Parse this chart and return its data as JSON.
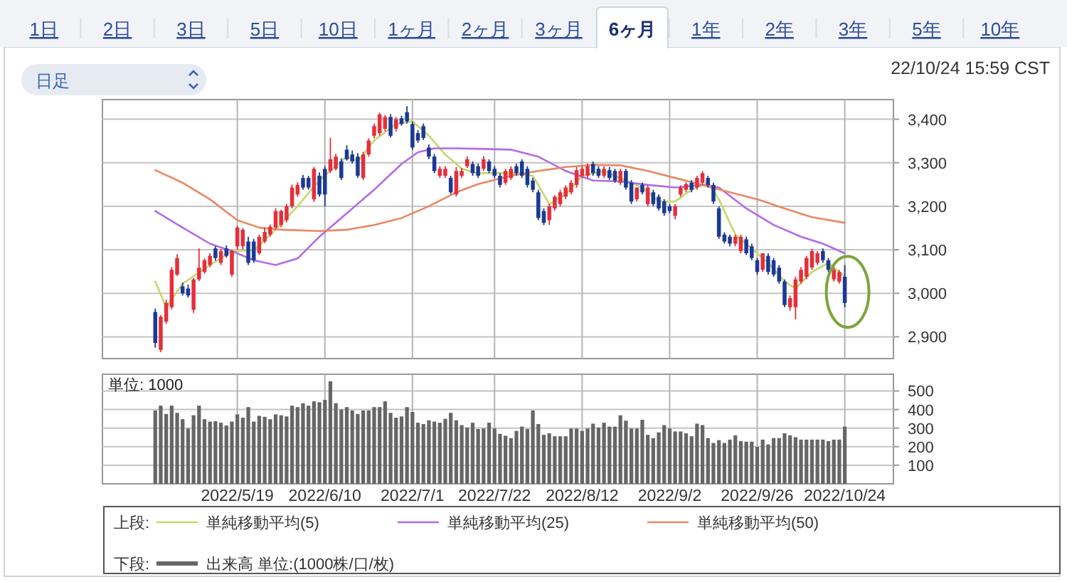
{
  "chart_data": [
    {
      "type": "other",
      "categories": [
        "1日",
        "2日",
        "3日",
        "5日",
        "10日",
        "1ヶ月",
        "2ヶ月",
        "3ヶ月",
        "6ヶ月",
        "1年",
        "2年",
        "3年",
        "5年",
        "10年"
      ],
      "annotations": [
        "日足"
      ]
    },
    {
      "type": "candlestick",
      "categories": [
        null,
        null,
        null,
        null,
        null,
        null,
        null,
        null,
        null,
        null,
        null,
        null,
        null,
        null,
        null,
        "2022/5/19",
        null,
        null,
        null,
        null,
        null,
        null,
        null,
        null,
        null,
        null,
        null,
        null,
        null,
        null,
        null,
        "2022/6/10",
        null,
        null,
        null,
        null,
        null,
        null,
        null,
        null,
        null,
        null,
        null,
        null,
        null,
        null,
        null,
        "2022/7/1",
        null,
        null,
        null,
        null,
        null,
        null,
        null,
        null,
        null,
        null,
        null,
        null,
        null,
        null,
        "2022/7/22",
        null,
        null,
        null,
        null,
        null,
        null,
        null,
        null,
        null,
        null,
        null,
        null,
        null,
        null,
        null,
        "2022/8/12",
        null,
        null,
        null,
        null,
        null,
        null,
        null,
        null,
        null,
        null,
        null,
        null,
        null,
        null,
        null,
        "2022/9/2",
        null,
        null,
        null,
        null,
        null,
        null,
        null,
        null,
        null,
        null,
        null,
        null,
        null,
        null,
        null,
        "2022/9/26",
        null,
        null,
        null,
        null,
        null,
        null,
        null,
        null,
        null,
        null,
        null,
        null,
        null,
        null,
        null,
        "2022/10/24"
      ],
      "ohlc": [
        [
          2957,
          2965,
          2875,
          2886
        ],
        [
          2870,
          2950,
          2865,
          2946
        ],
        [
          2935,
          2985,
          2930,
          2978
        ],
        [
          2968,
          3060,
          2963,
          3054
        ],
        [
          3043,
          3090,
          3040,
          3081
        ],
        [
          3016,
          3025,
          2995,
          3000
        ],
        [
          3011,
          3020,
          2990,
          2995
        ],
        [
          2962,
          3035,
          2955,
          3032
        ],
        [
          3032,
          3103,
          3028,
          3059
        ],
        [
          3049,
          3080,
          3045,
          3076
        ],
        [
          3065,
          3092,
          3060,
          3086
        ],
        [
          3103,
          3108,
          3075,
          3081
        ],
        [
          3070,
          3102,
          3065,
          3097
        ],
        [
          3103,
          3110,
          3082,
          3086
        ],
        [
          3043,
          3100,
          3038,
          3097
        ],
        [
          3108,
          3155,
          3100,
          3151
        ],
        [
          3108,
          3150,
          3100,
          3146
        ],
        [
          3119,
          3130,
          3065,
          3070
        ],
        [
          3119,
          3125,
          3070,
          3076
        ],
        [
          3092,
          3135,
          3088,
          3130
        ],
        [
          3119,
          3151,
          3115,
          3141
        ],
        [
          3135,
          3158,
          3130,
          3153
        ],
        [
          3151,
          3195,
          3147,
          3189
        ],
        [
          3157,
          3192,
          3152,
          3189
        ],
        [
          3168,
          3205,
          3163,
          3200
        ],
        [
          3200,
          3250,
          3195,
          3243
        ],
        [
          3227,
          3255,
          3222,
          3249
        ],
        [
          3265,
          3272,
          3238,
          3243
        ],
        [
          3265,
          3270,
          3238,
          3243
        ],
        [
          3216,
          3290,
          3210,
          3286
        ],
        [
          3270,
          3278,
          3222,
          3227
        ],
        [
          3286,
          3292,
          3200,
          3227
        ],
        [
          3281,
          3357,
          3276,
          3308
        ],
        [
          3286,
          3320,
          3282,
          3314
        ],
        [
          3303,
          3310,
          3260,
          3265
        ],
        [
          3330,
          3340,
          3305,
          3308
        ],
        [
          3319,
          3328,
          3298,
          3303
        ],
        [
          3314,
          3322,
          3265,
          3270
        ],
        [
          3265,
          3325,
          3260,
          3319
        ],
        [
          3319,
          3356,
          3314,
          3351
        ],
        [
          3362,
          3390,
          3356,
          3384
        ],
        [
          3368,
          3415,
          3362,
          3411
        ],
        [
          3378,
          3410,
          3372,
          3405
        ],
        [
          3405,
          3412,
          3358,
          3362
        ],
        [
          3378,
          3405,
          3372,
          3400
        ],
        [
          3402,
          3408,
          3385,
          3389
        ],
        [
          3416,
          3430,
          3390,
          3395
        ],
        [
          3389,
          3395,
          3330,
          3335
        ],
        [
          3368,
          3375,
          3346,
          3351
        ],
        [
          3384,
          3390,
          3352,
          3357
        ],
        [
          3335,
          3342,
          3308,
          3314
        ],
        [
          3314,
          3320,
          3276,
          3281
        ],
        [
          3270,
          3292,
          3265,
          3286
        ],
        [
          3270,
          3292,
          3265,
          3286
        ],
        [
          3265,
          3270,
          3228,
          3232
        ],
        [
          3227,
          3290,
          3222,
          3281
        ],
        [
          3270,
          3288,
          3265,
          3281
        ],
        [
          3292,
          3315,
          3288,
          3308
        ],
        [
          3297,
          3303,
          3270,
          3276
        ],
        [
          3292,
          3298,
          3265,
          3270
        ],
        [
          3286,
          3315,
          3281,
          3308
        ],
        [
          3303,
          3308,
          3276,
          3281
        ],
        [
          3286,
          3292,
          3265,
          3270
        ],
        [
          3270,
          3276,
          3243,
          3249
        ],
        [
          3254,
          3286,
          3249,
          3281
        ],
        [
          3265,
          3292,
          3260,
          3286
        ],
        [
          3292,
          3298,
          3270,
          3276
        ],
        [
          3303,
          3308,
          3265,
          3270
        ],
        [
          3286,
          3292,
          3243,
          3249
        ],
        [
          3259,
          3265,
          3232,
          3238
        ],
        [
          3232,
          3238,
          3168,
          3173
        ],
        [
          3189,
          3195,
          3157,
          3162
        ],
        [
          3168,
          3205,
          3157,
          3200
        ],
        [
          3195,
          3225,
          3190,
          3222
        ],
        [
          3205,
          3238,
          3200,
          3232
        ],
        [
          3222,
          3248,
          3216,
          3243
        ],
        [
          3232,
          3260,
          3227,
          3254
        ],
        [
          3249,
          3290,
          3243,
          3283
        ],
        [
          3270,
          3292,
          3265,
          3286
        ],
        [
          3270,
          3298,
          3265,
          3292
        ],
        [
          3297,
          3303,
          3270,
          3276
        ],
        [
          3286,
          3292,
          3265,
          3270
        ],
        [
          3270,
          3292,
          3265,
          3286
        ],
        [
          3283,
          3290,
          3260,
          3265
        ],
        [
          3281,
          3286,
          3254,
          3259
        ],
        [
          3254,
          3286,
          3249,
          3281
        ],
        [
          3281,
          3286,
          3238,
          3243
        ],
        [
          3254,
          3260,
          3205,
          3211
        ],
        [
          3216,
          3243,
          3211,
          3243
        ],
        [
          3249,
          3254,
          3227,
          3232
        ],
        [
          3205,
          3248,
          3200,
          3243
        ],
        [
          3232,
          3238,
          3200,
          3205
        ],
        [
          3222,
          3227,
          3190,
          3195
        ],
        [
          3211,
          3216,
          3178,
          3184
        ],
        [
          3200,
          3205,
          3184,
          3189
        ],
        [
          3178,
          3205,
          3170,
          3200
        ],
        [
          3227,
          3248,
          3222,
          3243
        ],
        [
          3238,
          3255,
          3232,
          3251
        ],
        [
          3254,
          3260,
          3232,
          3238
        ],
        [
          3243,
          3270,
          3238,
          3265
        ],
        [
          3254,
          3281,
          3249,
          3276
        ],
        [
          3265,
          3270,
          3243,
          3249
        ],
        [
          3249,
          3254,
          3205,
          3211
        ],
        [
          3195,
          3200,
          3125,
          3130
        ],
        [
          3135,
          3140,
          3114,
          3119
        ],
        [
          3130,
          3135,
          3108,
          3114
        ],
        [
          3114,
          3135,
          3108,
          3130
        ],
        [
          3097,
          3135,
          3092,
          3130
        ],
        [
          3124,
          3130,
          3088,
          3092
        ],
        [
          3108,
          3114,
          3076,
          3081
        ],
        [
          3076,
          3081,
          3043,
          3049
        ],
        [
          3054,
          3092,
          3049,
          3092
        ],
        [
          3086,
          3092,
          3043,
          3049
        ],
        [
          3076,
          3081,
          3038,
          3043
        ],
        [
          3059,
          3065,
          3022,
          3027
        ],
        [
          3027,
          3032,
          2968,
          2973
        ],
        [
          2968,
          2995,
          2960,
          2989
        ],
        [
          2968,
          3038,
          2940,
          3032
        ],
        [
          3027,
          3060,
          3022,
          3054
        ],
        [
          3038,
          3086,
          3032,
          3081
        ],
        [
          3059,
          3102,
          3054,
          3097
        ],
        [
          3070,
          3097,
          3065,
          3092
        ],
        [
          3097,
          3103,
          3070,
          3076
        ],
        [
          3076,
          3081,
          3049,
          3054
        ],
        [
          3032,
          3060,
          3027,
          3054
        ],
        [
          3027,
          3054,
          3022,
          3049
        ],
        [
          3038,
          3065,
          2968,
          2978
        ]
      ],
      "series": [
        {
          "type": "line",
          "name": "単純移動平均(5)",
          "color": "#c3d96a",
          "values": [
            3027,
            null,
            2968,
            null,
            null,
            3022,
            null,
            null,
            null,
            null,
            3065,
            null,
            null,
            null,
            3097,
            null,
            null,
            null,
            3099,
            null,
            null,
            null,
            3146,
            null,
            null,
            null,
            3200,
            null,
            null,
            null,
            3260,
            null,
            null,
            null,
            null,
            3314,
            null,
            3303,
            null,
            null,
            3351,
            null,
            null,
            null,
            3389,
            null,
            null,
            3395,
            null,
            null,
            3362,
            null,
            null,
            3319,
            null,
            null,
            3286,
            null,
            null,
            3276,
            null,
            null,
            null,
            3276,
            null,
            null,
            3276,
            null,
            null,
            3270,
            null,
            null,
            3205,
            null,
            null,
            3227,
            null,
            null,
            3270,
            null,
            null,
            null,
            3281,
            null,
            null,
            null,
            3259,
            null,
            null,
            3243,
            null,
            null,
            3211,
            null,
            null,
            3211,
            null,
            null,
            3238,
            null,
            null,
            3254,
            null,
            3216,
            null,
            null,
            3135,
            null,
            null,
            3103,
            null,
            null,
            3070,
            null,
            null,
            3027,
            null,
            3011,
            null,
            null,
            3049,
            null,
            null,
            3070,
            null,
            null,
            3038
          ]
        },
        {
          "type": "line",
          "name": "単純移動平均(25)",
          "color": "#b36be6",
          "values": [
            3189,
            null,
            null,
            null,
            null,
            3151,
            null,
            null,
            null,
            null,
            3114,
            null,
            null,
            null,
            3097,
            null,
            null,
            null,
            3076,
            null,
            null,
            null,
            3065,
            null,
            null,
            null,
            3080,
            null,
            null,
            null,
            3130,
            null,
            null,
            null,
            null,
            3184,
            null,
            null,
            null,
            null,
            3238,
            null,
            null,
            null,
            null,
            3297,
            null,
            null,
            3324,
            null,
            null,
            3333,
            null,
            null,
            null,
            3333,
            null,
            null,
            null,
            3332,
            null,
            null,
            null,
            null,
            null,
            3330,
            null,
            null,
            null,
            null,
            3314,
            null,
            null,
            null,
            null,
            3281,
            null,
            null,
            null,
            null,
            3259,
            null,
            null,
            null,
            null,
            3257,
            null,
            null,
            null,
            null,
            3249,
            null,
            null,
            null,
            null,
            3243,
            null,
            null,
            null,
            null,
            3249,
            null,
            null,
            3243,
            null,
            null,
            null,
            null,
            3195,
            null,
            null,
            null,
            null,
            3157,
            null,
            null,
            null,
            null,
            3130,
            null,
            null,
            null,
            3114,
            null,
            null,
            null,
            3092
          ]
        },
        {
          "type": "line",
          "name": "単純移動平均(50)",
          "color": "#e98864",
          "values": [
            3283,
            null,
            null,
            null,
            null,
            3254,
            null,
            null,
            null,
            null,
            3216,
            null,
            null,
            null,
            null,
            3168,
            null,
            null,
            null,
            3151,
            null,
            null,
            null,
            3146,
            null,
            null,
            null,
            null,
            null,
            null,
            3143,
            null,
            null,
            null,
            null,
            3146,
            null,
            null,
            null,
            null,
            3157,
            null,
            null,
            null,
            null,
            3173,
            null,
            null,
            null,
            null,
            3200,
            null,
            null,
            null,
            null,
            3232,
            null,
            null,
            null,
            3251,
            null,
            null,
            null,
            null,
            null,
            3270,
            null,
            null,
            null,
            null,
            3281,
            null,
            null,
            null,
            null,
            3290,
            null,
            null,
            null,
            null,
            3295,
            null,
            null,
            null,
            null,
            3294,
            null,
            null,
            null,
            null,
            3281,
            null,
            null,
            null,
            null,
            3265,
            null,
            null,
            null,
            null,
            3249,
            null,
            null,
            null,
            null,
            3232,
            null,
            null,
            null,
            null,
            3216,
            null,
            null,
            null,
            null,
            3195,
            null,
            null,
            null,
            null,
            3175,
            null,
            null,
            null,
            null,
            null,
            3162
          ]
        }
      ],
      "ylim": [
        2850,
        3445
      ],
      "yticks": [
        {
          "value": 2900,
          "label": "2,900"
        },
        {
          "value": 3000,
          "label": "3,000"
        },
        {
          "value": 3100,
          "label": "3,100"
        },
        {
          "value": 3200,
          "label": "3,200"
        },
        {
          "value": 3300,
          "label": "3,300"
        },
        {
          "value": 3400,
          "label": "3,400"
        }
      ],
      "tick_labels": "y",
      "grid": true,
      "legend": "bottom",
      "legend_title": "上段:",
      "annotations": [
        "22/10/24 15:59 CST"
      ]
    },
    {
      "type": "bar",
      "categories": [
        null,
        null,
        null,
        null,
        null,
        null,
        null,
        null,
        null,
        null,
        null,
        null,
        null,
        null,
        null,
        "2022/5/19",
        null,
        null,
        null,
        null,
        null,
        null,
        null,
        null,
        null,
        null,
        null,
        null,
        null,
        null,
        null,
        "2022/6/10",
        null,
        null,
        null,
        null,
        null,
        null,
        null,
        null,
        null,
        null,
        null,
        null,
        null,
        null,
        null,
        "2022/7/1",
        null,
        null,
        null,
        null,
        null,
        null,
        null,
        null,
        null,
        null,
        null,
        null,
        null,
        null,
        "2022/7/22",
        null,
        null,
        null,
        null,
        null,
        null,
        null,
        null,
        null,
        null,
        null,
        null,
        null,
        null,
        null,
        "2022/8/12",
        null,
        null,
        null,
        null,
        null,
        null,
        null,
        null,
        null,
        null,
        null,
        null,
        null,
        null,
        null,
        "2022/9/2",
        null,
        null,
        null,
        null,
        null,
        null,
        null,
        null,
        null,
        null,
        null,
        null,
        null,
        null,
        null,
        "2022/9/26",
        null,
        null,
        null,
        null,
        null,
        null,
        null,
        null,
        null,
        null,
        null,
        null,
        null,
        null,
        null,
        "2022/10/24"
      ],
      "series": [
        {
          "name": "出来高 単位:(1000株/口/枚)",
          "color": "#666666",
          "values": [
            395,
            421,
            376,
            421,
            382,
            348,
            298,
            369,
            421,
            348,
            335,
            337,
            329,
            314,
            335,
            374,
            356,
            413,
            335,
            366,
            361,
            348,
            374,
            369,
            363,
            421,
            413,
            434,
            421,
            444,
            439,
            452,
            552,
            434,
            400,
            413,
            395,
            376,
            395,
            395,
            413,
            413,
            444,
            382,
            356,
            363,
            413,
            387,
            329,
            322,
            342,
            335,
            329,
            350,
            382,
            342,
            316,
            303,
            329,
            295,
            298,
            329,
            298,
            269,
            259,
            246,
            285,
            308,
            295,
            395,
            322,
            264,
            272,
            256,
            256,
            256,
            298,
            298,
            285,
            298,
            324,
            303,
            329,
            308,
            308,
            369,
            340,
            298,
            298,
            345,
            264,
            246,
            277,
            316,
            298,
            282,
            282,
            272,
            256,
            324,
            316,
            246,
            220,
            235,
            220,
            238,
            261,
            230,
            227,
            227,
            199,
            238,
            212,
            246,
            246,
            272,
            261,
            251,
            238,
            238,
            238,
            238,
            238,
            230,
            238,
            238,
            308
          ]
        }
      ],
      "ylim": [
        0,
        590
      ],
      "yticks": [
        100,
        200,
        300,
        400,
        500
      ],
      "ylabel": "単位: 1000",
      "grid": true,
      "legend": "bottom",
      "legend_title": "下段:"
    }
  ]
}
